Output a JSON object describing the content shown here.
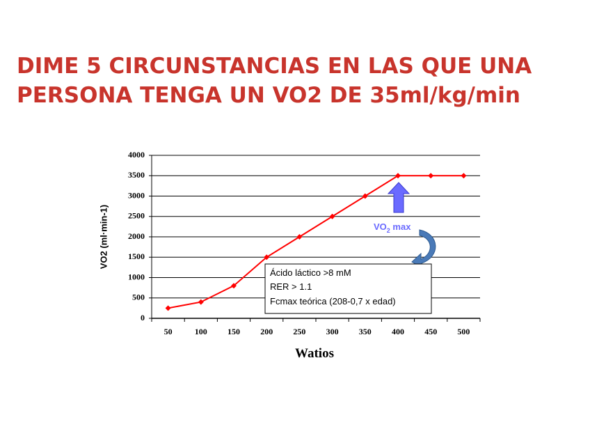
{
  "slide": {
    "title_lines": [
      "DIME 5 CIRCUNSTANCIAS EN LAS QUE UNA",
      "PERSONA  TENGA UN VO2 DE 35ml/kg/min"
    ]
  },
  "chart_data": {
    "type": "line",
    "categories": [
      "50",
      "100",
      "150",
      "200",
      "250",
      "300",
      "350",
      "400",
      "450",
      "500"
    ],
    "values": [
      250,
      400,
      800,
      1500,
      2000,
      2500,
      3000,
      3500,
      3500,
      3500
    ],
    "color": "#ff0000",
    "ylim": [
      0,
      4000
    ],
    "yticks": [
      0,
      500,
      1000,
      1500,
      2000,
      2500,
      3000,
      3500,
      4000
    ],
    "grid": true,
    "x_label": "Watios",
    "y_label": "VO2 (ml·min-1)",
    "annotations": {
      "vo2max": [
        "VO",
        "2",
        " max"
      ],
      "box": [
        "Ácido láctico  >8 mM",
        "RER > 1.1",
        "Fcmax teórica (208-0,7 x edad)"
      ]
    }
  }
}
